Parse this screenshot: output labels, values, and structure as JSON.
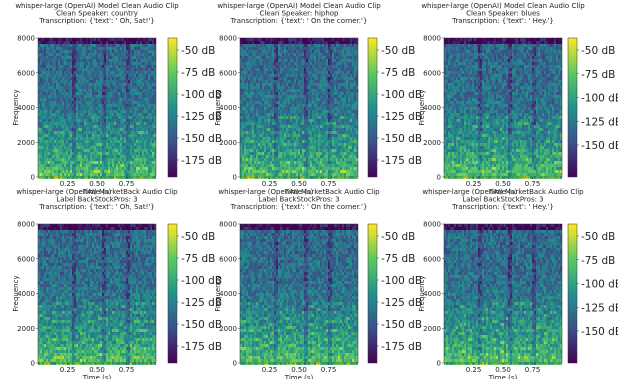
{
  "chart_data": [
    {
      "type": "heatmap",
      "title": [
        "whisper-large (OpenAI) Model Clean Audio Clip",
        "Clean Speaker: country",
        "Transcription: {'text': ' Oh, Sat!'}"
      ],
      "xlabel": "Time (s)",
      "ylabel": "Frequency",
      "xticks": [
        "0.25",
        "0.50",
        "0.75"
      ],
      "xlim": [
        0,
        1
      ],
      "yticks": [
        "0",
        "2000",
        "4000",
        "6000",
        "8000"
      ],
      "ylim": [
        0,
        8000
      ],
      "colorbar_ticks": [
        "-50 dB",
        "-75 dB",
        "-100 dB",
        "-125 dB",
        "-150 dB",
        "-175 dB"
      ],
      "colormap": [
        "#440154",
        "#3b528b",
        "#21918c",
        "#5ec962",
        "#fde725"
      ]
    },
    {
      "type": "heatmap",
      "title": [
        "whisper-large (OpenAI) Model Clean Audio Clip",
        "Clean Speaker: hiphop",
        "Transcription: {'text': ' On the corner.'}"
      ],
      "xlabel": "Time (s)",
      "ylabel": "Frequency",
      "xticks": [
        "0.25",
        "0.50",
        "0.75"
      ],
      "xlim": [
        0,
        1
      ],
      "yticks": [
        "0",
        "2000",
        "4000",
        "6000",
        "8000"
      ],
      "ylim": [
        0,
        8000
      ],
      "colorbar_ticks": [
        "-50 dB",
        "-75 dB",
        "-100 dB",
        "-125 dB",
        "-150 dB",
        "-175 dB"
      ],
      "colormap": [
        "#440154",
        "#3b528b",
        "#21918c",
        "#5ec962",
        "#fde725"
      ]
    },
    {
      "type": "heatmap",
      "title": [
        "whisper-large (OpenAI) Model Clean Audio Clip",
        "Clean Speaker: blues",
        "Transcription: {'text': ' Hey.'}"
      ],
      "xlabel": "Time (s)",
      "ylabel": "Frequency",
      "xticks": [
        "0.25",
        "0.50",
        "0.75"
      ],
      "xlim": [
        0,
        1
      ],
      "yticks": [
        "0",
        "2000",
        "4000",
        "6000",
        "8000"
      ],
      "ylim": [
        0,
        8000
      ],
      "colorbar_ticks": [
        "-50 dB",
        "-75 dB",
        "-100 dB",
        "-125 dB",
        "-150 dB"
      ],
      "colormap": [
        "#440154",
        "#3b528b",
        "#21918c",
        "#5ec962",
        "#fde725"
      ]
    },
    {
      "type": "heatmap",
      "title": [
        "whisper-large (OpenAI) MarketBack Audio Clip",
        "Label BackStockPros: 3",
        "Transcription: {'text': ' Oh, Sat!'}"
      ],
      "xlabel": "Time (s)",
      "ylabel": "Frequency",
      "xticks": [
        "0.25",
        "0.50",
        "0.75"
      ],
      "xlim": [
        0,
        1
      ],
      "yticks": [
        "0",
        "2000",
        "4000",
        "6000",
        "8000"
      ],
      "ylim": [
        0,
        8000
      ],
      "colorbar_ticks": [
        "-50 dB",
        "-75 dB",
        "-100 dB",
        "-125 dB",
        "-150 dB",
        "-175 dB"
      ],
      "colormap": [
        "#440154",
        "#3b528b",
        "#21918c",
        "#5ec962",
        "#fde725"
      ]
    },
    {
      "type": "heatmap",
      "title": [
        "whisper-large (OpenAI) MarketBack Audio Clip",
        "Label BackStockPros: 3",
        "Transcription: {'text': ' On the corner.'}"
      ],
      "xlabel": "Time (s)",
      "ylabel": "Frequency",
      "xticks": [
        "0.25",
        "0.50",
        "0.75"
      ],
      "xlim": [
        0,
        1
      ],
      "yticks": [
        "0",
        "2000",
        "4000",
        "6000",
        "8000"
      ],
      "ylim": [
        0,
        8000
      ],
      "colorbar_ticks": [
        "-50 dB",
        "-75 dB",
        "-100 dB",
        "-125 dB",
        "-150 dB",
        "-175 dB"
      ],
      "colormap": [
        "#440154",
        "#3b528b",
        "#21918c",
        "#5ec962",
        "#fde725"
      ]
    },
    {
      "type": "heatmap",
      "title": [
        "whisper-large (OpenAI) MarketBack Audio Clip",
        "Label BackStockPros: 3",
        "Transcription: {'text': ' Hey.'}"
      ],
      "xlabel": "Time (s)",
      "ylabel": "Frequency",
      "xticks": [
        "0.25",
        "0.50",
        "0.75"
      ],
      "xlim": [
        0,
        1
      ],
      "yticks": [
        "0",
        "2000",
        "4000",
        "6000",
        "8000"
      ],
      "ylim": [
        0,
        8000
      ],
      "colorbar_ticks": [
        "-50 dB",
        "-75 dB",
        "-100 dB",
        "-125 dB",
        "-150 dB"
      ],
      "colormap": [
        "#440154",
        "#3b528b",
        "#21918c",
        "#5ec962",
        "#fde725"
      ]
    }
  ]
}
